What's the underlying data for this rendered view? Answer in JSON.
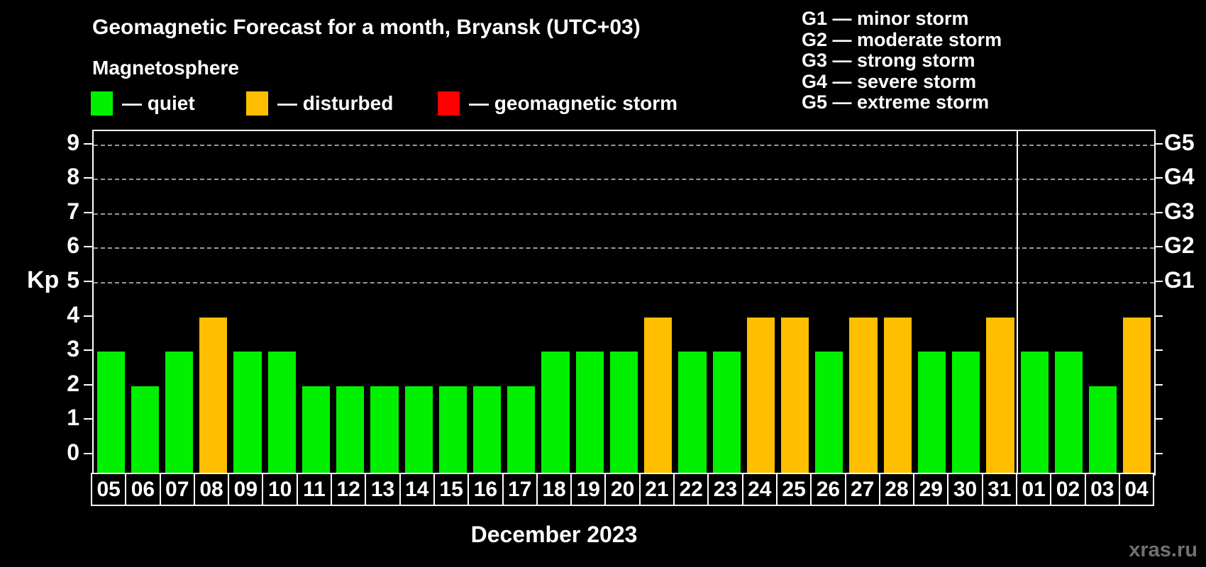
{
  "title": "Geomagnetic Forecast for a month, Bryansk (UTC+03)",
  "subtitle": "Magnetosphere",
  "legend": {
    "items": [
      {
        "key": "quiet",
        "label": "— quiet",
        "color": "#00F000",
        "x": 128
      },
      {
        "key": "disturbed",
        "label": "— disturbed",
        "color": "#FFBE00",
        "x": 347
      },
      {
        "key": "storm",
        "label": "— geomagnetic storm",
        "color": "#FF0000",
        "x": 617
      }
    ]
  },
  "storm_scale": [
    "G1 — minor storm",
    "G2 — moderate storm",
    "G3 — strong storm",
    "G4 — severe storm",
    "G5 — extreme storm"
  ],
  "watermark": "xras.ru",
  "colors": {
    "background": "#000000",
    "axis": "#FFFFFF",
    "grid": "#9A9A9A",
    "text": "#FFFFFF",
    "watermark": "#707070",
    "quiet": "#00F000",
    "disturbed": "#FFBE00",
    "storm": "#FF0000"
  },
  "chart_data": {
    "type": "bar",
    "title": "Geomagnetic Forecast for a month, Bryansk (UTC+03)",
    "ylabel": "Kp",
    "xlabel": "December 2023",
    "ylim": [
      0,
      9
    ],
    "yticks": [
      0,
      1,
      2,
      3,
      4,
      5,
      6,
      7,
      8,
      9
    ],
    "right_axis": [
      {
        "value": 5,
        "label": "G1"
      },
      {
        "value": 6,
        "label": "G2"
      },
      {
        "value": 7,
        "label": "G3"
      },
      {
        "value": 8,
        "label": "G4"
      },
      {
        "value": 9,
        "label": "G5"
      }
    ],
    "grid": "dashed horizontal lines at Kp 5–9 (G1–G5 levels)",
    "legend_position": "top",
    "month_split_index": 27,
    "categories": [
      "05",
      "06",
      "07",
      "08",
      "09",
      "10",
      "11",
      "12",
      "13",
      "14",
      "15",
      "16",
      "17",
      "18",
      "19",
      "20",
      "21",
      "22",
      "23",
      "24",
      "25",
      "26",
      "27",
      "28",
      "29",
      "30",
      "31",
      "01",
      "02",
      "03",
      "04"
    ],
    "values": [
      3,
      2,
      3,
      4,
      3,
      3,
      2,
      2,
      2,
      2,
      2,
      2,
      2,
      3,
      3,
      3,
      4,
      3,
      3,
      4,
      4,
      3,
      4,
      4,
      3,
      3,
      4,
      3,
      3,
      2,
      4
    ],
    "bars": [
      {
        "date": "05",
        "kp": 3,
        "state": "quiet"
      },
      {
        "date": "06",
        "kp": 2,
        "state": "quiet"
      },
      {
        "date": "07",
        "kp": 3,
        "state": "quiet"
      },
      {
        "date": "08",
        "kp": 4,
        "state": "disturbed"
      },
      {
        "date": "09",
        "kp": 3,
        "state": "quiet"
      },
      {
        "date": "10",
        "kp": 3,
        "state": "quiet"
      },
      {
        "date": "11",
        "kp": 2,
        "state": "quiet"
      },
      {
        "date": "12",
        "kp": 2,
        "state": "quiet"
      },
      {
        "date": "13",
        "kp": 2,
        "state": "quiet"
      },
      {
        "date": "14",
        "kp": 2,
        "state": "quiet"
      },
      {
        "date": "15",
        "kp": 2,
        "state": "quiet"
      },
      {
        "date": "16",
        "kp": 2,
        "state": "quiet"
      },
      {
        "date": "17",
        "kp": 2,
        "state": "quiet"
      },
      {
        "date": "18",
        "kp": 3,
        "state": "quiet"
      },
      {
        "date": "19",
        "kp": 3,
        "state": "quiet"
      },
      {
        "date": "20",
        "kp": 3,
        "state": "quiet"
      },
      {
        "date": "21",
        "kp": 4,
        "state": "disturbed"
      },
      {
        "date": "22",
        "kp": 3,
        "state": "quiet"
      },
      {
        "date": "23",
        "kp": 3,
        "state": "quiet"
      },
      {
        "date": "24",
        "kp": 4,
        "state": "disturbed"
      },
      {
        "date": "25",
        "kp": 4,
        "state": "disturbed"
      },
      {
        "date": "26",
        "kp": 3,
        "state": "quiet"
      },
      {
        "date": "27",
        "kp": 4,
        "state": "disturbed"
      },
      {
        "date": "28",
        "kp": 4,
        "state": "disturbed"
      },
      {
        "date": "29",
        "kp": 3,
        "state": "quiet"
      },
      {
        "date": "30",
        "kp": 3,
        "state": "quiet"
      },
      {
        "date": "31",
        "kp": 4,
        "state": "disturbed"
      },
      {
        "date": "01",
        "kp": 3,
        "state": "quiet"
      },
      {
        "date": "02",
        "kp": 3,
        "state": "quiet"
      },
      {
        "date": "03",
        "kp": 2,
        "state": "quiet"
      },
      {
        "date": "04",
        "kp": 4,
        "state": "disturbed"
      }
    ]
  }
}
